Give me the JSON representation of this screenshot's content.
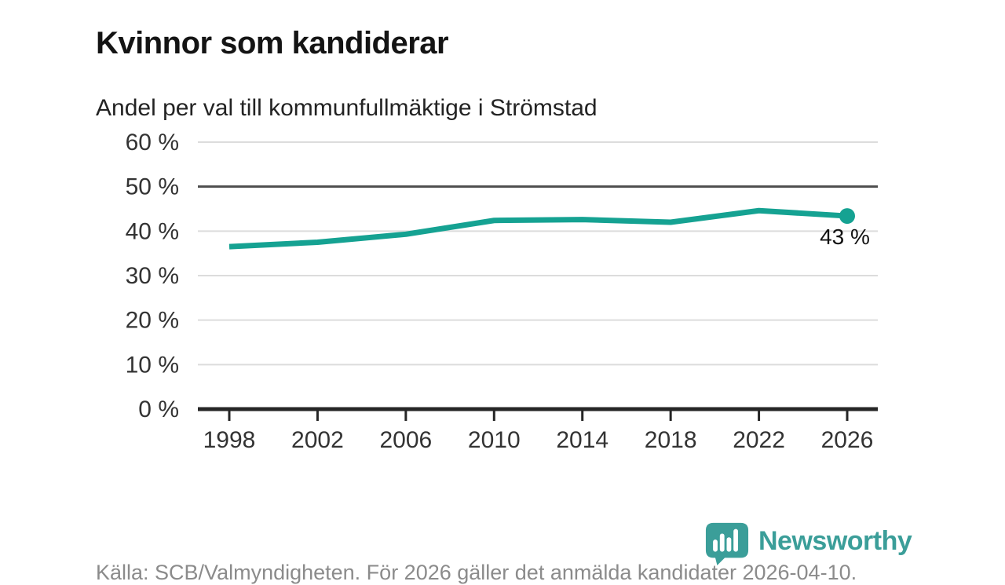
{
  "header": {
    "title": "Kvinnor som kandiderar",
    "subtitle": "Andel per val till kommunfullmäktige i Strömstad"
  },
  "chart_data": {
    "type": "line",
    "title": "Kvinnor som kandiderar",
    "subtitle": "Andel per val till kommunfullmäktige i Strömstad",
    "x": [
      1998,
      2002,
      2006,
      2010,
      2014,
      2018,
      2022,
      2026
    ],
    "series": [
      {
        "name": "andel-kvinnor",
        "values": [
          36.5,
          37.5,
          39.3,
          42.4,
          42.6,
          42.0,
          44.6,
          43.4
        ]
      }
    ],
    "end_label": "43 %",
    "yticks": [
      0,
      10,
      20,
      30,
      40,
      50,
      60
    ],
    "ytick_suffix": " %",
    "ylim": [
      0,
      60
    ],
    "xlabel": "",
    "ylabel": "",
    "grid": true,
    "legend": "none",
    "reference_line": 50,
    "colors": {
      "line": "#15a292",
      "marker": "#15a292",
      "grid": "#dcdcdc",
      "reference": "#4d4d4d",
      "axis": "#262626",
      "tick_label": "#333333",
      "end_label": "#111111"
    }
  },
  "footer": {
    "source": "Källa: SCB/Valmyndigheten. För 2026 gäller det anmälda kandidater 2026-04-10.",
    "brand": "Newsworthy",
    "brand_color": "#3b9e99"
  }
}
